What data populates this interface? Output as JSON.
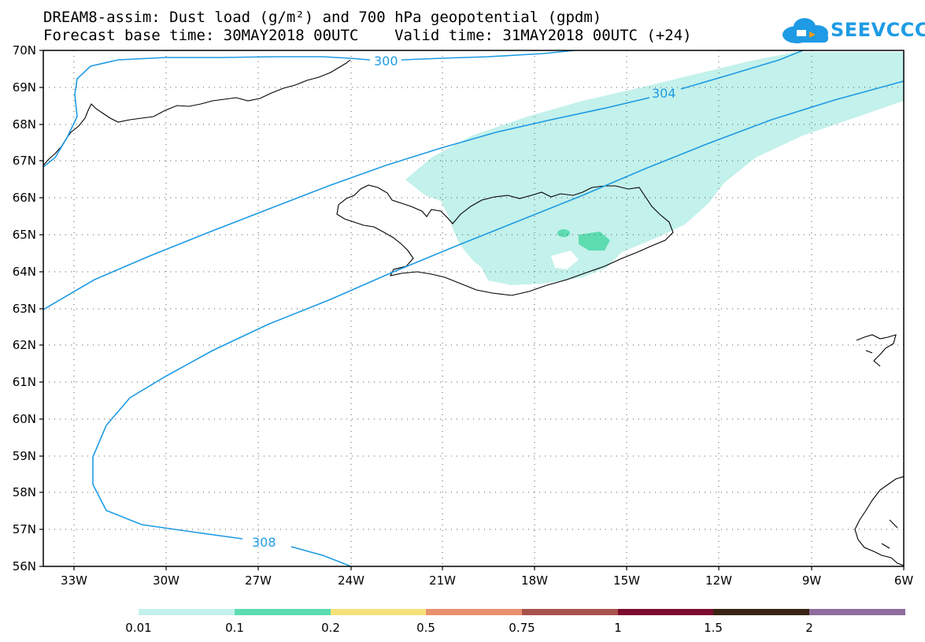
{
  "title": {
    "line1": "DREAM8-assim: Dust load (g/m²) and 700 hPa geopotential (gpdm)",
    "line2": "Forecast base time: 30MAY2018 00UTC    Valid time: 31MAY2018 00UTC (+24)"
  },
  "logo": {
    "text": "SEEVCCC",
    "icon": "cloud-icon"
  },
  "map": {
    "lat_labels": [
      "70N",
      "69N",
      "68N",
      "67N",
      "66N",
      "65N",
      "64N",
      "63N",
      "62N",
      "61N",
      "60N",
      "59N",
      "58N",
      "57N",
      "56N"
    ],
    "lon_labels": [
      "33W",
      "30W",
      "27W",
      "24W",
      "21W",
      "18W",
      "15W",
      "12W",
      "9W",
      "6W"
    ],
    "lon_range": [
      -34.5,
      -6
    ],
    "lat_range": [
      56,
      70
    ],
    "grid": "dotted",
    "contours": [
      {
        "value": "300",
        "color": "#1e9be4"
      },
      {
        "value": "304",
        "color": "#1e9be4"
      },
      {
        "value": "308",
        "color": "#1e9be4"
      }
    ]
  },
  "colorbar": {
    "labels": [
      "0.01",
      "0.1",
      "0.2",
      "0.5",
      "0.75",
      "1",
      "1.5",
      "2"
    ],
    "colors": [
      "#c3f1eb",
      "#5ddcb0",
      "#f5e27a",
      "#e9906e",
      "#a8524c",
      "#7d0d2e",
      "#3a2414",
      "#8e6d9e"
    ]
  },
  "colors": {
    "dust_light": "#c3f1eb",
    "dust_medium": "#5ddcb0",
    "contour": "#1e9be4"
  }
}
